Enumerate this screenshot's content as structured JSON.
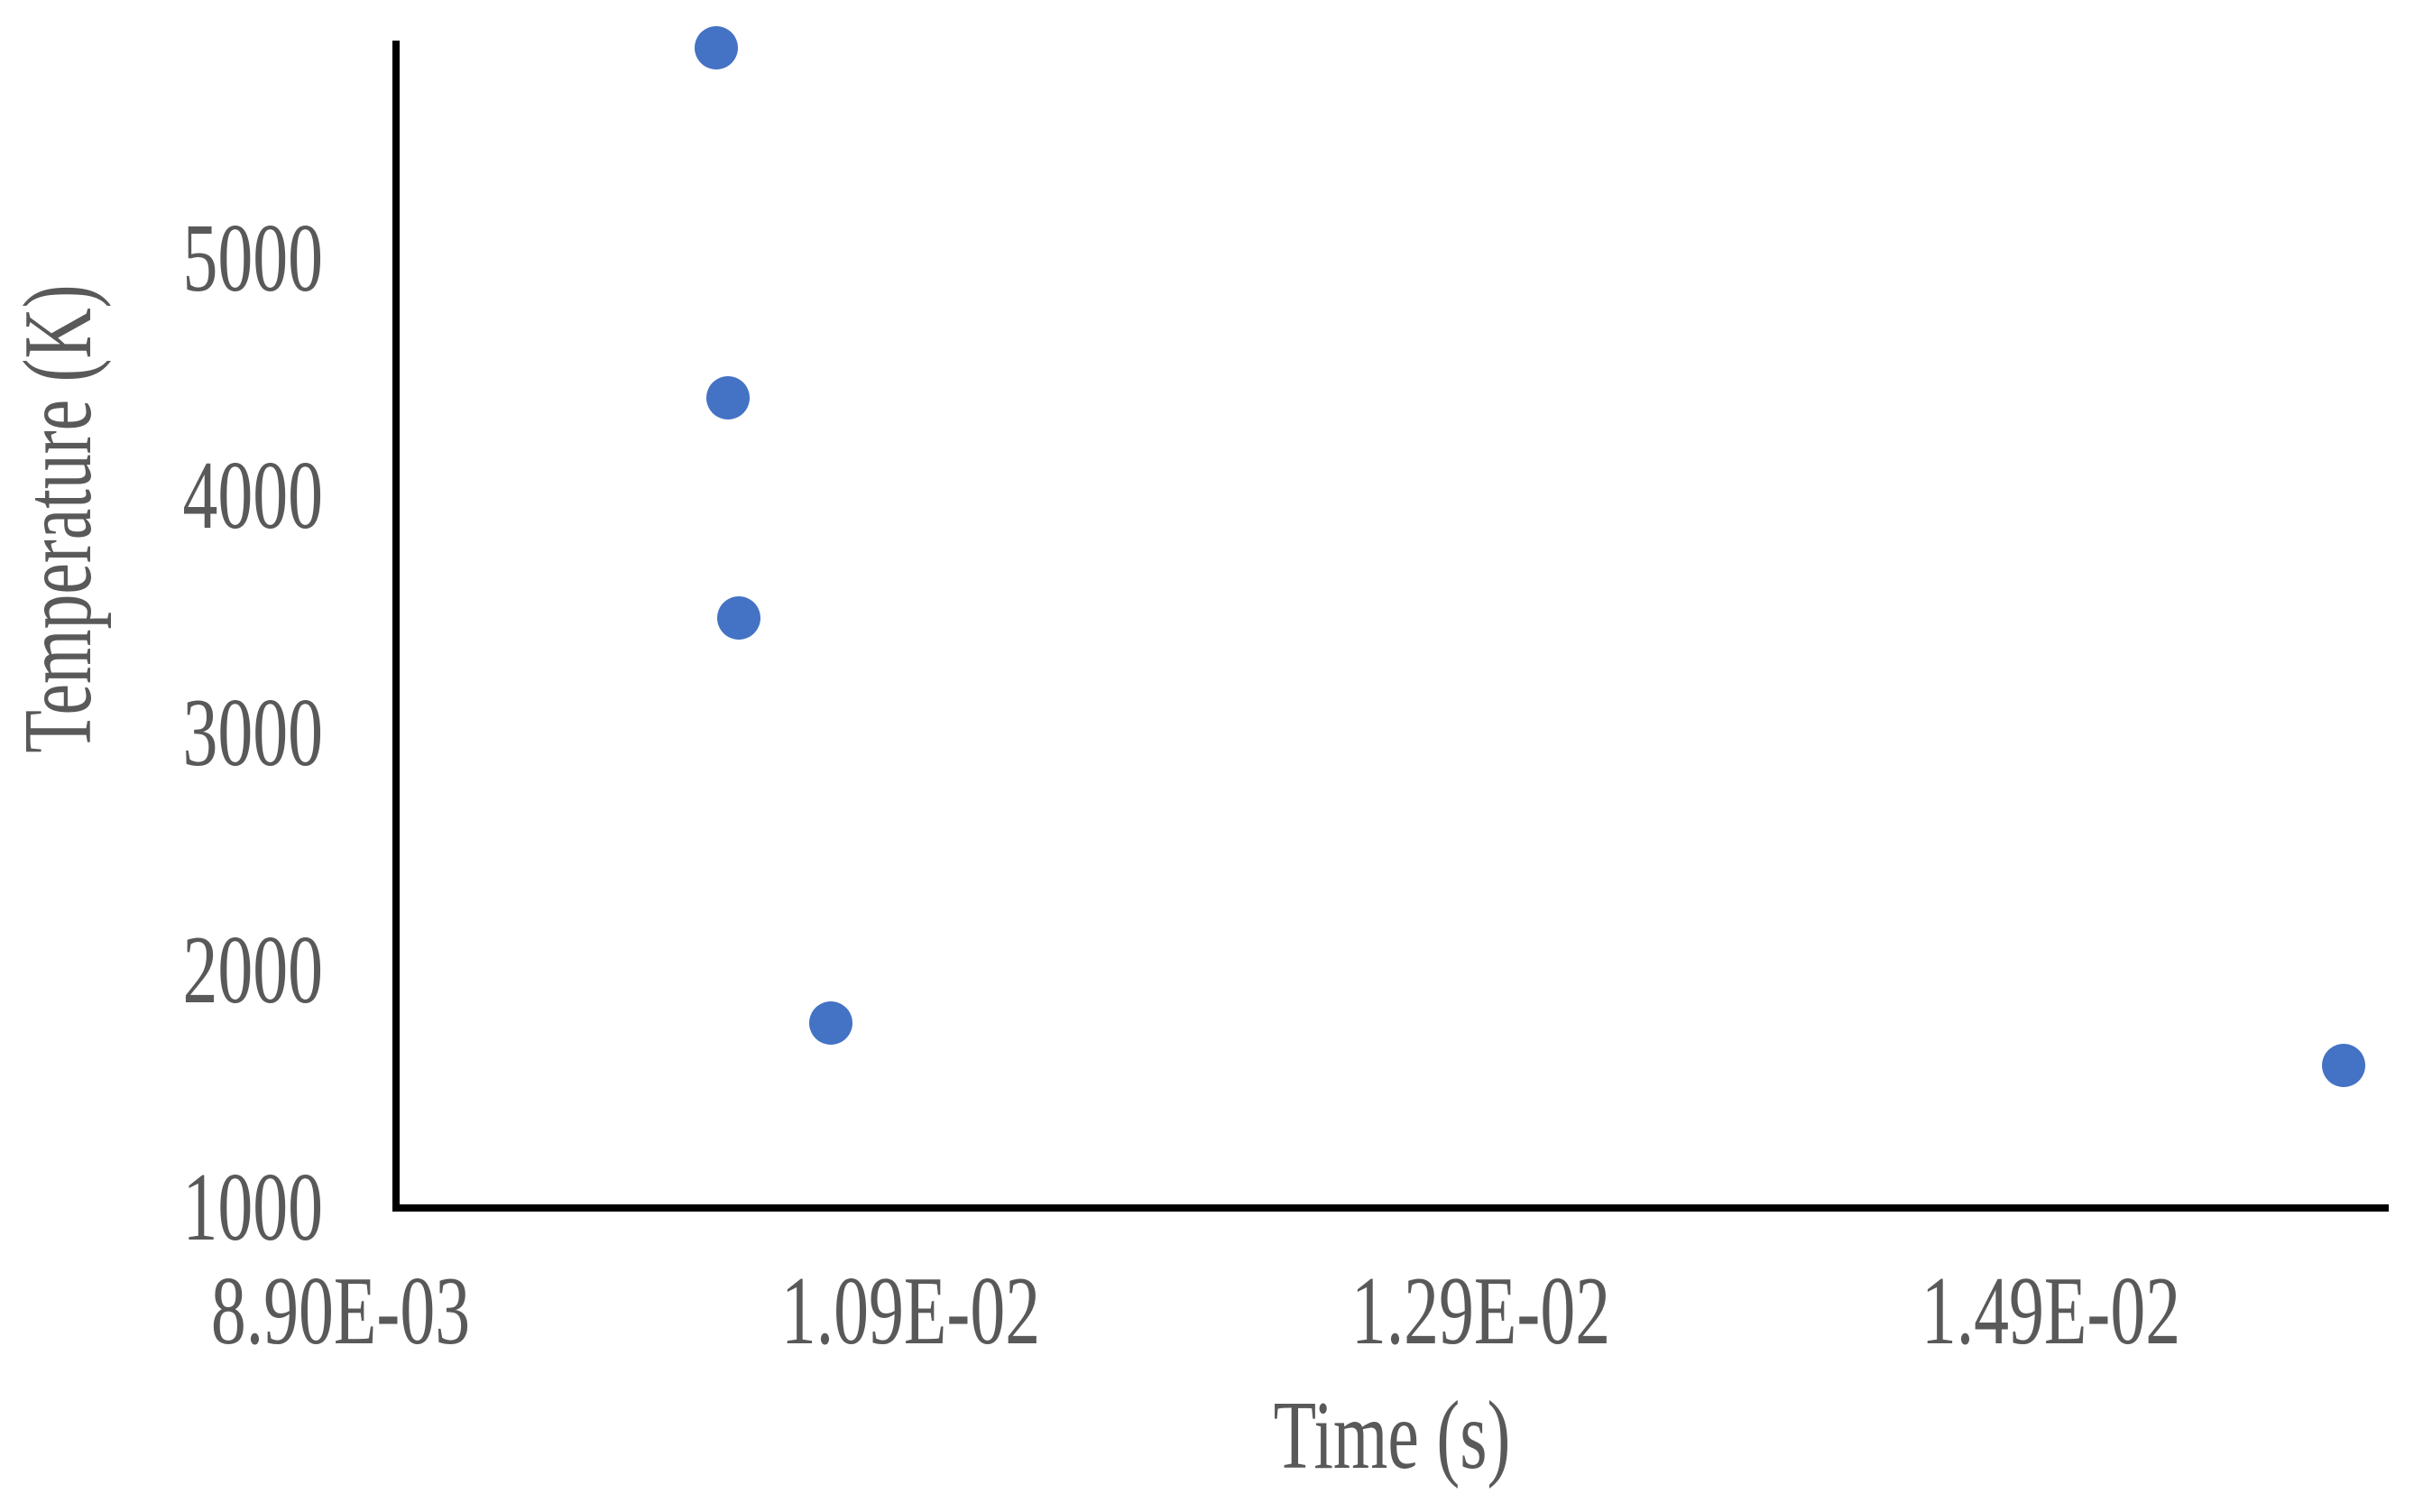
{
  "chart_data": {
    "type": "scatter",
    "title": "",
    "xlabel": "Time (s)",
    "ylabel": "Temperature (K)",
    "x": [
      0.01022,
      0.01026,
      0.0103,
      0.01062,
      0.01593
    ],
    "y": [
      5890,
      4415,
      3485,
      1780,
      1600
    ],
    "x_ticks": [
      {
        "label": "8.90E-03",
        "value": 0.0089
      },
      {
        "label": "1.09E-02",
        "value": 0.0109
      },
      {
        "label": "1.29E-02",
        "value": 0.0129
      },
      {
        "label": "1.49E-02",
        "value": 0.0149
      }
    ],
    "y_ticks": [
      {
        "label": "1000",
        "value": 1000
      },
      {
        "label": "2000",
        "value": 2000
      },
      {
        "label": "3000",
        "value": 3000
      },
      {
        "label": "4000",
        "value": 4000
      },
      {
        "label": "5000",
        "value": 5000
      }
    ],
    "x_range": [
      0.0089,
      0.0159
    ],
    "ylim": [
      1000,
      6000
    ],
    "grid": false,
    "legend": false,
    "marker_color": "#4472C4",
    "text_color": "#595959",
    "axis_color": "#000000"
  }
}
